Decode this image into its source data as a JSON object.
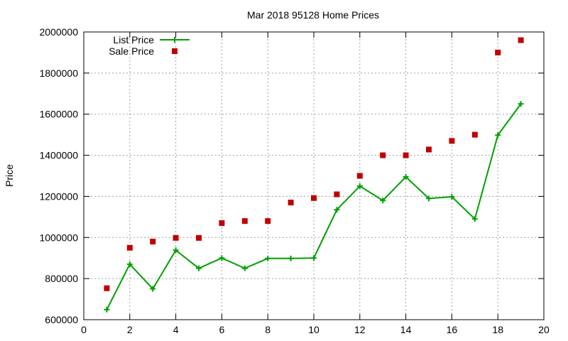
{
  "colors": {
    "list_price": "#00a000",
    "sale_price": "#c00000",
    "grid": "#a0a0a0",
    "axis": "#000000"
  },
  "chart_data": {
    "type": "line",
    "title": "Mar 2018 95128 Home Prices",
    "xlabel": "",
    "ylabel": "Price",
    "xlim": [
      0,
      20
    ],
    "ylim": [
      600000,
      2000000
    ],
    "xticks": [
      0,
      2,
      4,
      6,
      8,
      10,
      12,
      14,
      16,
      18,
      20
    ],
    "yticks": [
      600000,
      800000,
      1000000,
      1200000,
      1400000,
      1600000,
      1800000,
      2000000
    ],
    "grid": true,
    "legend_position": "top-left",
    "series": [
      {
        "name": "List Price",
        "style": "line-with-plus-markers",
        "color": "#00a000",
        "x": [
          1,
          2,
          3,
          4,
          5,
          6,
          7,
          8,
          9,
          10,
          11,
          12,
          13,
          14,
          15,
          16,
          17,
          18,
          19
        ],
        "y": [
          649000,
          870000,
          750000,
          938000,
          850000,
          900000,
          850000,
          898000,
          898000,
          900000,
          1135000,
          1250000,
          1180000,
          1295000,
          1190000,
          1198000,
          1090000,
          1498000,
          1650000
        ]
      },
      {
        "name": "Sale Price",
        "style": "square-markers",
        "color": "#c00000",
        "x": [
          1,
          2,
          3,
          4,
          5,
          6,
          7,
          8,
          9,
          10,
          11,
          12,
          13,
          14,
          15,
          16,
          17,
          18,
          19
        ],
        "y": [
          753000,
          950000,
          980000,
          998000,
          998000,
          1070000,
          1080000,
          1080000,
          1170000,
          1192000,
          1210000,
          1300000,
          1400000,
          1400000,
          1428000,
          1470000,
          1500000,
          1900000,
          1960000
        ]
      }
    ]
  }
}
